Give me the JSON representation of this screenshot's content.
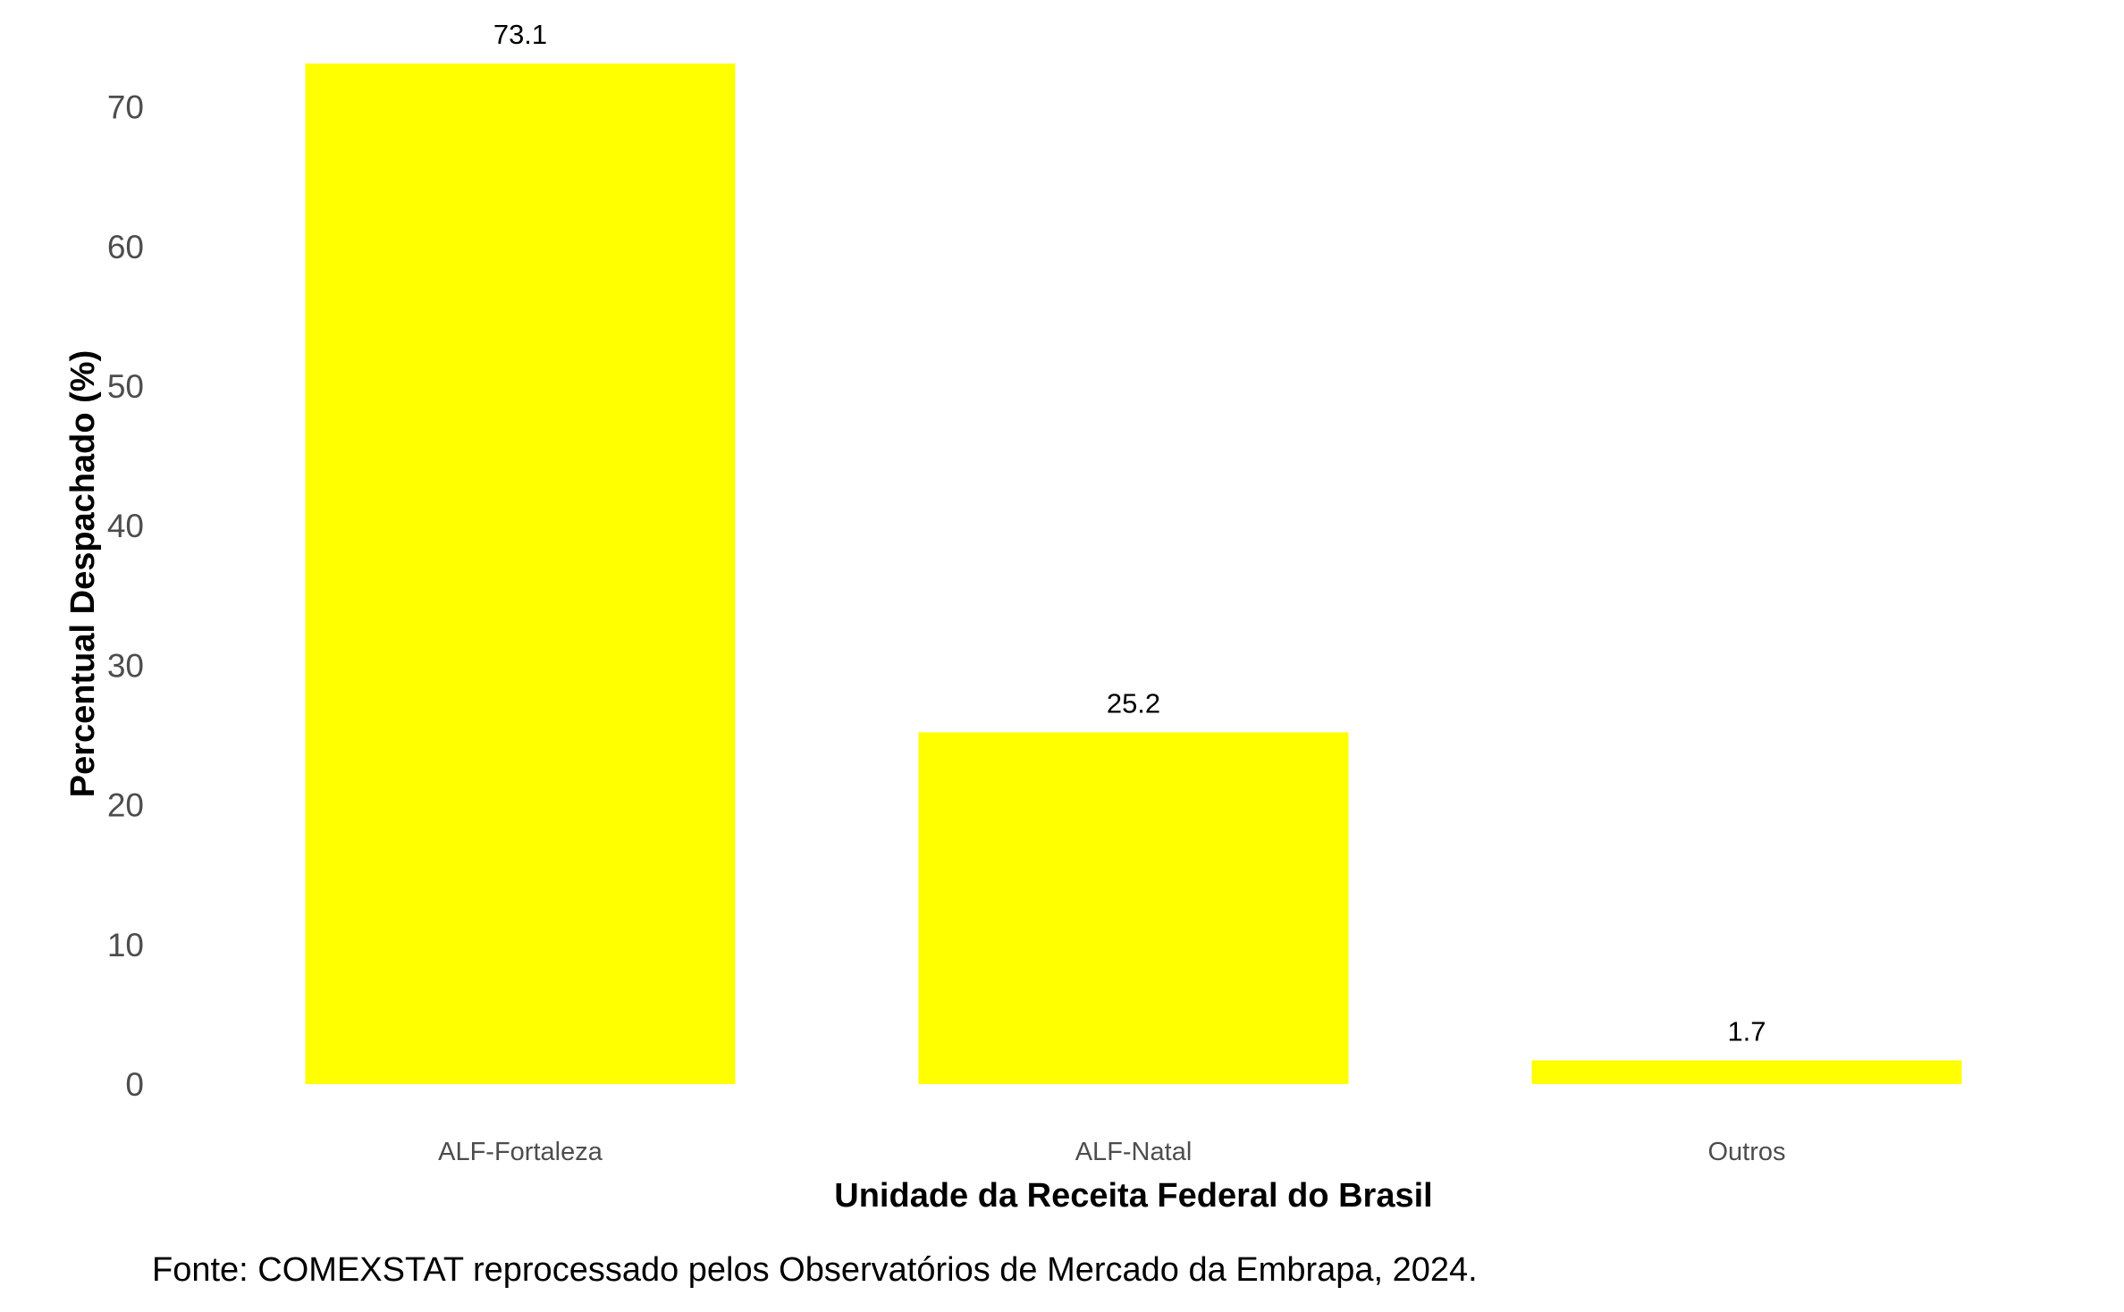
{
  "chart_data": {
    "type": "bar",
    "categories": [
      "ALF-Fortaleza",
      "ALF-Natal",
      "Outros"
    ],
    "values": [
      73.1,
      25.2,
      1.7
    ],
    "data_labels": [
      "73.1",
      "25.2",
      "1.7"
    ],
    "xlabel": "Unidade da Receita Federal do Brasil",
    "ylabel": "Percentual Despachado (%)",
    "caption": "Fonte: COMEXSTAT reprocessado pelos Observatórios de Mercado da Embrapa, 2024.",
    "ylim": [
      0,
      73.1
    ],
    "yticks": [
      0,
      10,
      20,
      30,
      40,
      50,
      60,
      70
    ],
    "ytick_labels": [
      "0",
      "10",
      "20",
      "30",
      "40",
      "50",
      "60",
      "70"
    ],
    "grid": false,
    "legend": "none",
    "bar_color": "#FFFF00"
  }
}
